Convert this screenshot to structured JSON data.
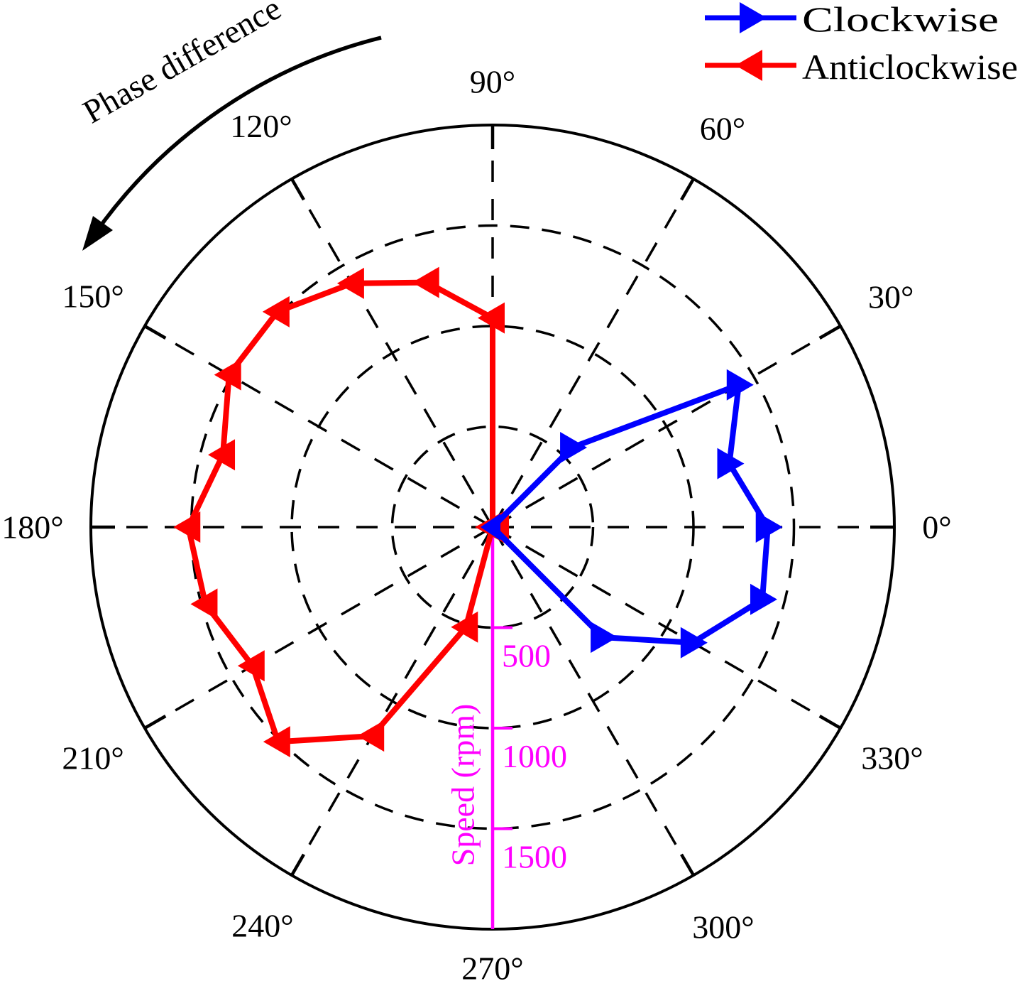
{
  "figure": {
    "background": "#ffffff",
    "annotation": {
      "text": "Phase difference",
      "arrow_direction": "anticlockwise"
    },
    "legend": [
      {
        "label": "Clockwise",
        "color": "#0000ff",
        "arrow": "right-arrow-icon"
      },
      {
        "label": "Anticlockwise",
        "color": "#ff0000",
        "arrow": "left-arrow-icon"
      }
    ],
    "angular_ticks": [
      {
        "angle": 0,
        "label": "0°"
      },
      {
        "angle": 30,
        "label": "30°"
      },
      {
        "angle": 60,
        "label": "60°"
      },
      {
        "angle": 90,
        "label": "90°"
      },
      {
        "angle": 120,
        "label": "120°"
      },
      {
        "angle": 150,
        "label": "150°"
      },
      {
        "angle": 180,
        "label": "180°"
      },
      {
        "angle": 210,
        "label": "210°"
      },
      {
        "angle": 240,
        "label": "240°"
      },
      {
        "angle": 270,
        "label": "270°"
      },
      {
        "angle": 300,
        "label": "300°"
      },
      {
        "angle": 330,
        "label": "330°"
      }
    ]
  },
  "chart_data": {
    "type": "line",
    "subtype": "polar",
    "title": "",
    "angular_unit": "degrees (phase difference)",
    "radial_label": "Speed (rpm)",
    "radial_ticks": [
      500,
      1000,
      1500
    ],
    "radial_max": 2000,
    "grid": "dashed",
    "legend_position": "top-right",
    "series": [
      {
        "name": "Clockwise",
        "color": "#0000ff",
        "marker": "right-triangle",
        "points": [
          {
            "angle": 60,
            "rpm": 0
          },
          {
            "angle": 45,
            "rpm": 560
          },
          {
            "angle": 30,
            "rpm": 1415
          },
          {
            "angle": 15,
            "rpm": 1220
          },
          {
            "angle": 0,
            "rpm": 1370
          },
          {
            "angle": 345,
            "rpm": 1390
          },
          {
            "angle": 330,
            "rpm": 1150
          },
          {
            "angle": 315,
            "rpm": 775
          },
          {
            "angle": 300,
            "rpm": 0
          }
        ]
      },
      {
        "name": "Anticlockwise",
        "color": "#ff0000",
        "marker": "left-triangle",
        "points": [
          {
            "angle": 75,
            "rpm": 0
          },
          {
            "angle": 90,
            "rpm": 1040
          },
          {
            "angle": 105,
            "rpm": 1260
          },
          {
            "angle": 120,
            "rpm": 1400
          },
          {
            "angle": 135,
            "rpm": 1515
          },
          {
            "angle": 150,
            "rpm": 1515
          },
          {
            "angle": 165,
            "rpm": 1390
          },
          {
            "angle": 180,
            "rpm": 1515
          },
          {
            "angle": 195,
            "rpm": 1480
          },
          {
            "angle": 210,
            "rpm": 1380
          },
          {
            "angle": 225,
            "rpm": 1510
          },
          {
            "angle": 240,
            "rpm": 1200
          },
          {
            "angle": 255,
            "rpm": 515
          },
          {
            "angle": 270,
            "rpm": 0
          }
        ]
      }
    ],
    "colors": {
      "radial_axis": "#ff00ff",
      "grid": "#000000"
    }
  }
}
